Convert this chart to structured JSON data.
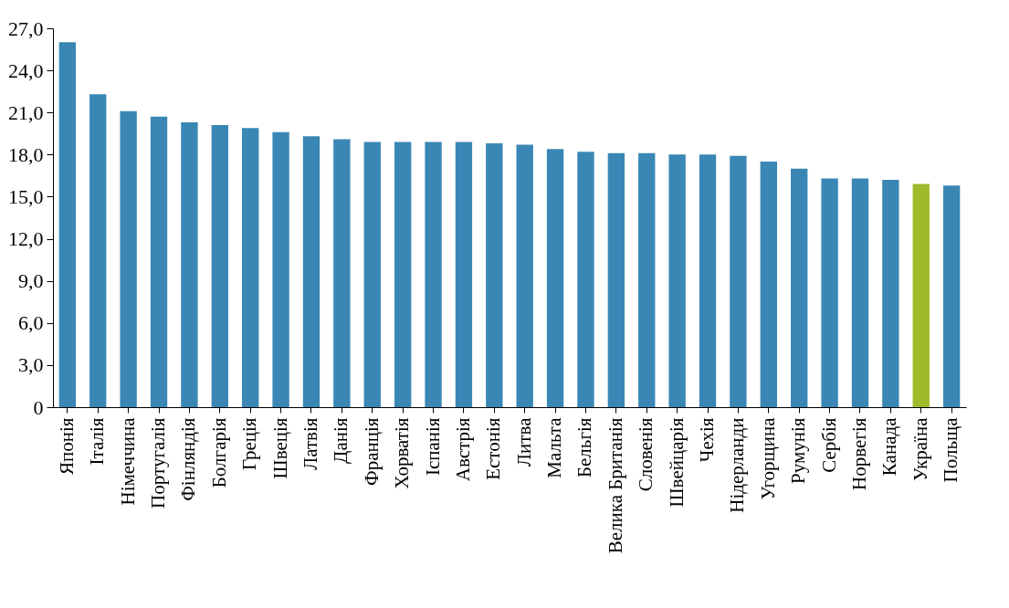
{
  "chart_data": {
    "type": "bar",
    "categories": [
      "Японія",
      "Італія",
      "Німеччина",
      "Португалія",
      "Фінляндія",
      "Болгарія",
      "Греція",
      "Швеція",
      "Латвія",
      "Данія",
      "Франція",
      "Хорватія",
      "Іспанія",
      "Австрія",
      "Естонія",
      "Литва",
      "Мальта",
      "Бельгія",
      "Велика Британія",
      "Словенія",
      "Швейцарія",
      "Чехія",
      "Нідерланди",
      "Угорщина",
      "Румунія",
      "Сербія",
      "Норвегія",
      "Канада",
      "Україна",
      "Польща"
    ],
    "values": [
      26.0,
      22.3,
      21.1,
      20.7,
      20.3,
      20.1,
      19.9,
      19.6,
      19.3,
      19.1,
      18.9,
      18.9,
      18.9,
      18.9,
      18.8,
      18.7,
      18.4,
      18.2,
      18.1,
      18.1,
      18.0,
      18.0,
      17.9,
      17.5,
      17.0,
      16.3,
      16.3,
      16.2,
      15.9,
      15.8
    ],
    "colors": [
      "#3a87b5",
      "#3a87b5",
      "#3a87b5",
      "#3a87b5",
      "#3a87b5",
      "#3a87b5",
      "#3a87b5",
      "#3a87b5",
      "#3a87b5",
      "#3a87b5",
      "#3a87b5",
      "#3a87b5",
      "#3a87b5",
      "#3a87b5",
      "#3a87b5",
      "#3a87b5",
      "#3a87b5",
      "#3a87b5",
      "#3a87b5",
      "#3a87b5",
      "#3a87b5",
      "#3a87b5",
      "#3a87b5",
      "#3a87b5",
      "#3a87b5",
      "#3a87b5",
      "#3a87b5",
      "#3a87b5",
      "#9dbb2a",
      "#3a87b5"
    ],
    "ylim": [
      0,
      27
    ],
    "yticks": [
      0,
      {
        "value": 3,
        "label": "3,0"
      },
      {
        "value": 6,
        "label": "6,0"
      },
      {
        "value": 9,
        "label": "9,0"
      },
      {
        "value": 12,
        "label": "12,0"
      },
      {
        "value": 15,
        "label": "15,0"
      },
      {
        "value": 18,
        "label": "18,0"
      },
      {
        "value": 21,
        "label": "21,0"
      },
      {
        "value": 24,
        "label": "24,0"
      },
      {
        "value": 27,
        "label": "27,0"
      }
    ],
    "ylabel": null
  }
}
